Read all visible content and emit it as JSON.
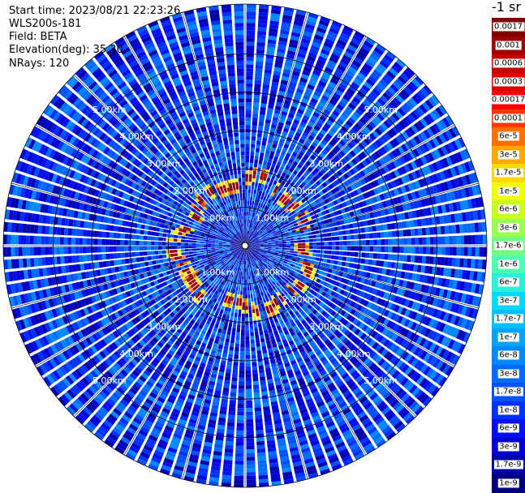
{
  "header": {
    "start_time": "Start time: 2023/08/21 22:23:26",
    "instrument": "WLS200s-181",
    "field": "Field: BETA",
    "elevation": "Elevation(deg): 35.30",
    "nrays": "NRays: 120"
  },
  "colorbar": {
    "title": "-1 sr",
    "labels": [
      "0.0017",
      "0.001",
      "0.0006",
      "0.0003",
      "0.00017",
      "0.0001",
      "6e-5",
      "3e-5",
      "1.7e-5",
      "1e-5",
      "6e-6",
      "3e-6",
      "1.7e-6",
      "1e-6",
      "6e-7",
      "3e-7",
      "1.7e-7",
      "1e-7",
      "6e-8",
      "3e-8",
      "1.7e-8",
      "1e-8",
      "6e-9",
      "3e-9",
      "1.7e-9",
      "1e-9"
    ],
    "colors": [
      "#800000",
      "#a00000",
      "#c40000",
      "#e00000",
      "#ff0000",
      "#ff3800",
      "#ff7000",
      "#ffa800",
      "#ffd800",
      "#f0ff00",
      "#c8ff20",
      "#9aff50",
      "#72ff80",
      "#4cffac",
      "#2cf0d8",
      "#00d8ff",
      "#00c0ff",
      "#00a4ff",
      "#0088ff",
      "#006cff",
      "#0050ff",
      "#0030ff",
      "#0010f0",
      "#0000d0",
      "#0000a8",
      "#00007c"
    ]
  },
  "chart_data": {
    "type": "heatmap",
    "projection": "polar (PPI scan)",
    "field": "BETA",
    "rays": 120,
    "range_unit": "km",
    "range_rings": [
      {
        "range_km": 1.0,
        "label": "1.00km"
      },
      {
        "range_km": 2.0,
        "label": "2.00km"
      },
      {
        "range_km": 3.0,
        "label": "3.00km"
      },
      {
        "range_km": 4.0,
        "label": "4.00km"
      },
      {
        "range_km": 5.0,
        "label": "5.00km"
      }
    ],
    "max_range_km": 6.3,
    "colorscale": "log10, 1e-9 to 0.0017 sr-1",
    "background_level": 1e-08,
    "features": [
      {
        "name": "aerosol layer ring",
        "range_km_min": 1.55,
        "range_km_max": 2.0,
        "level_max": 0.001
      }
    ]
  }
}
